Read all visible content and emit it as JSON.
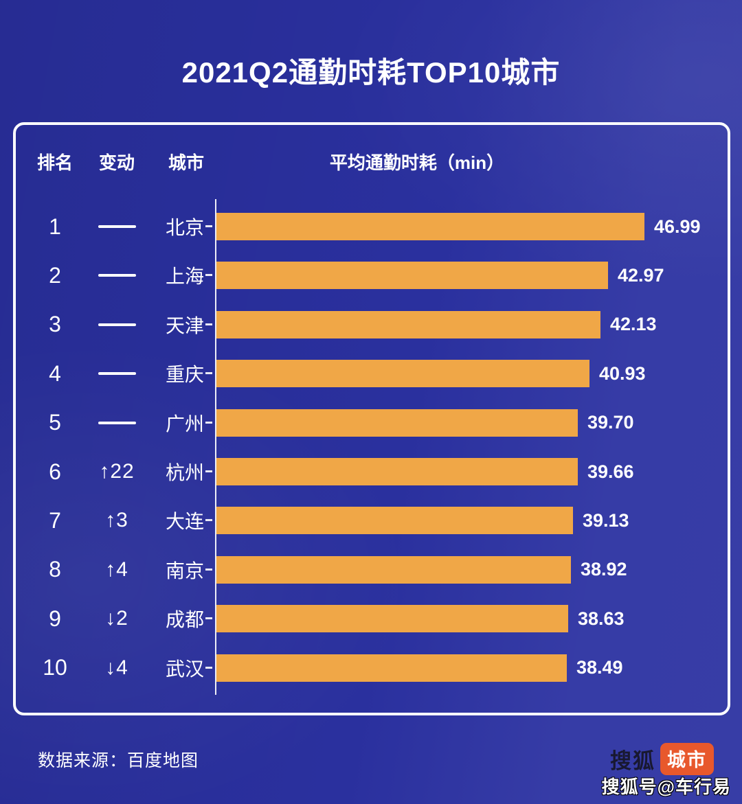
{
  "page": {
    "title": "2021Q2通勤时耗TOP10城市"
  },
  "table_headers": {
    "rank": "排名",
    "change": "变动",
    "city": "城市",
    "value": "平均通勤时耗（min）"
  },
  "chart_data": {
    "type": "bar",
    "orientation": "horizontal",
    "title": "2021Q2通勤时耗TOP10城市",
    "value_axis_label": "平均通勤时耗（min）",
    "xlim": [
      0,
      46.99
    ],
    "grid": false,
    "legend": "none",
    "categories": [
      "北京",
      "上海",
      "天津",
      "重庆",
      "广州",
      "杭州",
      "大连",
      "南京",
      "成都",
      "武汉"
    ],
    "ranks": [
      "1",
      "2",
      "3",
      "4",
      "5",
      "6",
      "7",
      "8",
      "9",
      "10"
    ],
    "changes": [
      "—",
      "—",
      "—",
      "—",
      "—",
      "↑22",
      "↑3",
      "↑4",
      "↓2",
      "↓4"
    ],
    "values": [
      46.99,
      42.97,
      42.13,
      40.93,
      39.7,
      39.66,
      39.13,
      38.92,
      38.63,
      38.49
    ],
    "value_labels": [
      "46.99",
      "42.97",
      "42.13",
      "40.93",
      "39.70",
      "39.66",
      "39.13",
      "38.92",
      "38.63",
      "38.49"
    ],
    "bar_color": "#f0a747"
  },
  "footer": {
    "source": "数据来源：百度地图"
  },
  "branding": {
    "sohu_text": "搜狐",
    "sohu_badge": "城市",
    "watermark": "搜狐号@车行易"
  },
  "colors": {
    "background": "#2b31a1",
    "bar": "#f0a747",
    "panel_border": "#ffffff",
    "badge": "#e8582c",
    "text": "#ffffff"
  }
}
